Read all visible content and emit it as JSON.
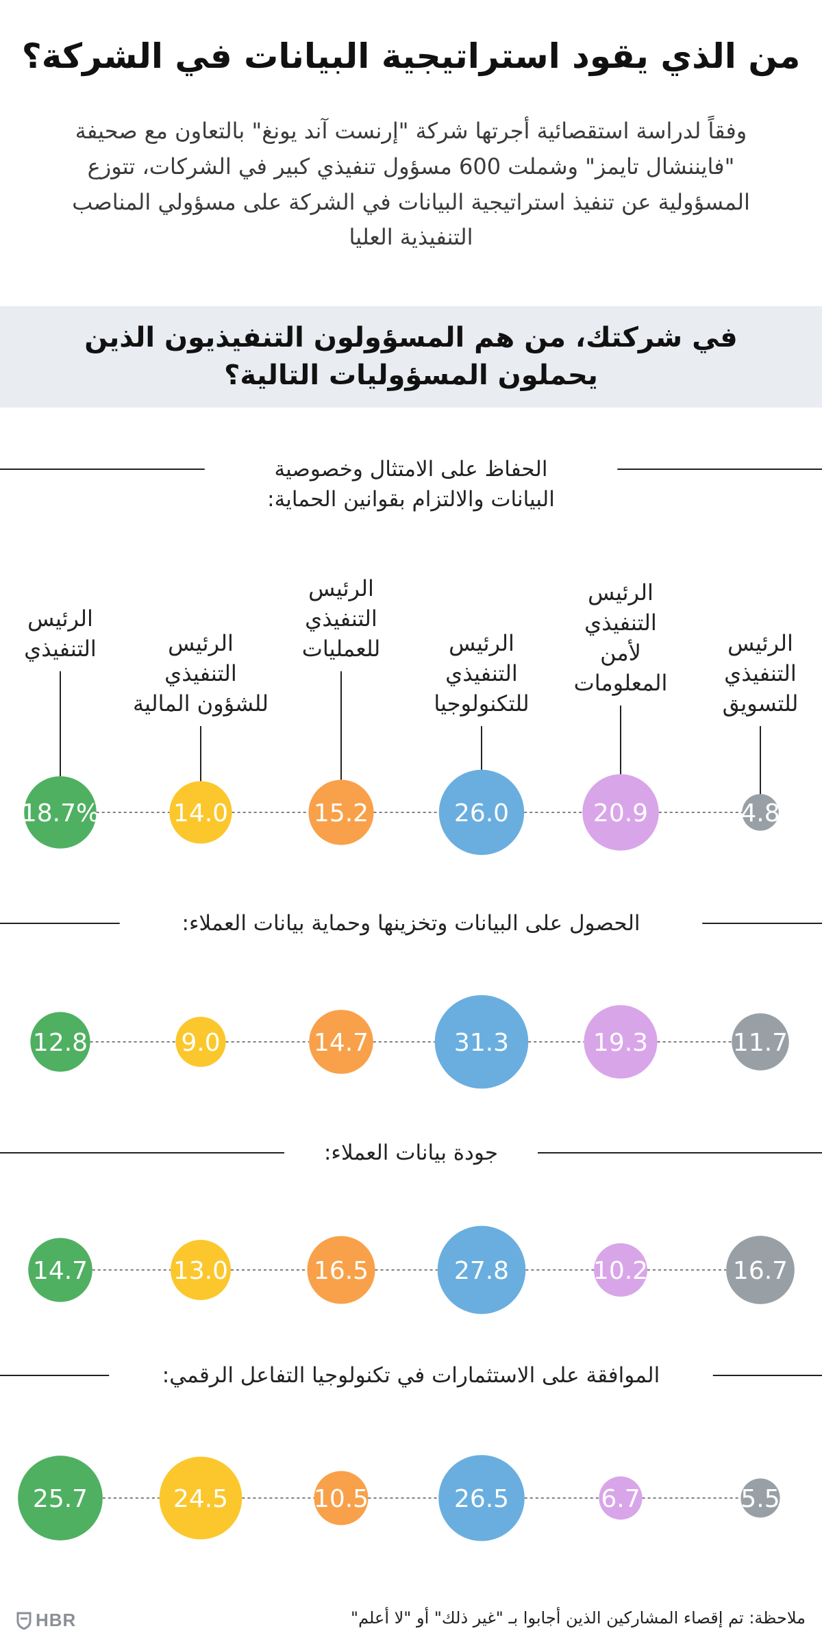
{
  "header": {
    "title": "من الذي يقود استراتيجية البيانات في الشركة؟",
    "intro": "وفقاً لدراسة استقصائية أجرتها شركة \"إرنست آند يونغ\" بالتعاون مع صحيفة \"فايننشال تايمز\" وشملت 600 مسؤول تنفيذي كبير في الشركات، تتوزع المسؤولية عن تنفيذ استراتيجية البيانات في الشركة على مسؤولي المناصب التنفيذية العليا"
  },
  "question": "في شركتك، من هم المسؤولون التنفيذيون الذين يحملون المسؤوليات التالية؟",
  "chart_data": {
    "type": "bubble",
    "unit": "%",
    "categories": [
      [
        "الرئيس",
        "التنفيذي",
        "للتسويق"
      ],
      [
        "الرئيس",
        "التنفيذي",
        "لأمن",
        "المعلومات"
      ],
      [
        "الرئيس",
        "التنفيذي",
        "للتكنولوجيا"
      ],
      [
        "الرئيس",
        "التنفيذي",
        "للعمليات"
      ],
      [
        "الرئيس",
        "التنفيذي",
        "للشؤون المالية"
      ],
      [
        "الرئيس",
        "التنفيذي"
      ]
    ],
    "colors": [
      "#98a0a6",
      "#d9a5e9",
      "#6aaedf",
      "#f8a14a",
      "#fbc72c",
      "#4fb062"
    ],
    "rows": [
      {
        "label": [
          "الحفاظ على الامتثال وخصوصية",
          "البيانات والالتزام بقوانين الحماية:"
        ],
        "values": [
          4.8,
          20.9,
          26.0,
          15.2,
          14.0,
          18.7
        ],
        "value_labels": [
          "4.8",
          "20.9",
          "26.0",
          "15.2",
          "14.0",
          "18.7%"
        ]
      },
      {
        "label": [
          "الحصول على البيانات وتخزينها وحماية بيانات العملاء:"
        ],
        "values": [
          11.7,
          19.3,
          31.3,
          14.7,
          9.0,
          12.8
        ],
        "value_labels": [
          "11.7",
          "19.3",
          "31.3",
          "14.7",
          "9.0",
          "12.8"
        ]
      },
      {
        "label": [
          "جودة بيانات العملاء:"
        ],
        "values": [
          16.7,
          10.2,
          27.8,
          16.5,
          13.0,
          14.7
        ],
        "value_labels": [
          "16.7",
          "10.2",
          "27.8",
          "16.5",
          "13.0",
          "14.7"
        ]
      },
      {
        "label": [
          "الموافقة على الاستثمارات في تكنولوجيا التفاعل الرقمي:"
        ],
        "values": [
          5.5,
          6.7,
          26.5,
          10.5,
          24.5,
          25.7
        ],
        "value_labels": [
          "5.5",
          "6.7",
          "26.5",
          "10.5",
          "24.5",
          "25.7"
        ]
      }
    ]
  },
  "footer": {
    "note": "ملاحظة: تم إقصاء المشاركين الذين أجابوا بـ \"غير ذلك\" أو \"لا أعلم\"",
    "logo": "HBR",
    "logo_icon": "shield-icon"
  }
}
